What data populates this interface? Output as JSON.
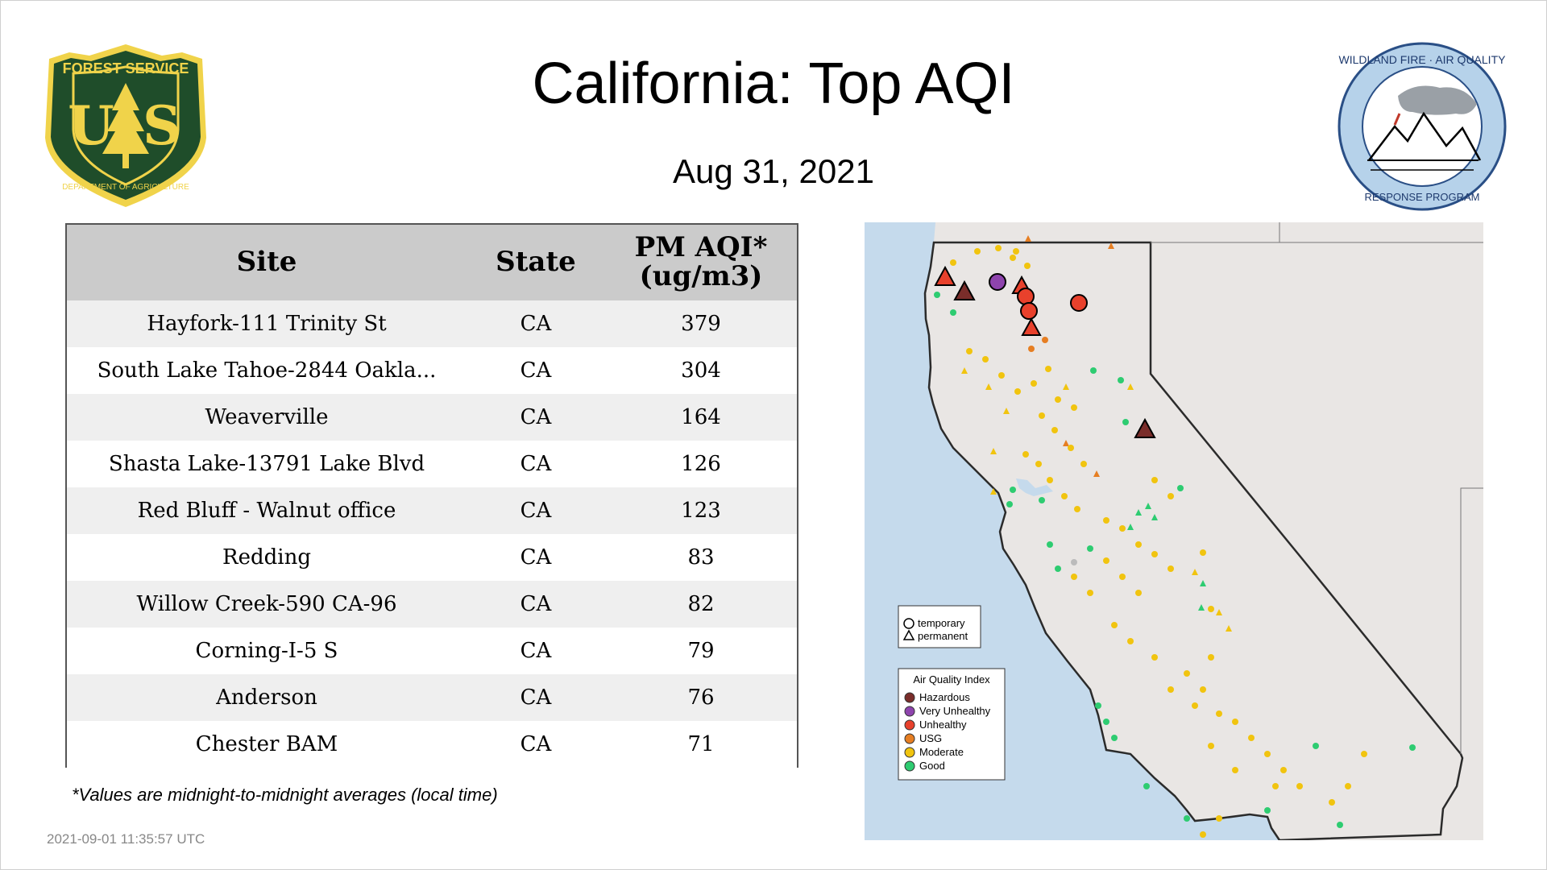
{
  "header": {
    "title": "California: Top AQI",
    "date": "Aug 31, 2021"
  },
  "logos": {
    "left": {
      "name": "forest-service-shield",
      "text_top": "FOREST SERVICE",
      "text_mid": "U S",
      "text_bottom": "DEPARTMENT OF AGRICULTURE",
      "colors": {
        "green": "#1f4d2a",
        "gold": "#f0d34a"
      }
    },
    "right": {
      "name": "wildland-fire-air-quality-badge",
      "text_top": "WILDLAND FIRE · AIR QUALITY",
      "text_bottom": "RESPONSE PROGRAM",
      "colors": {
        "ring": "#b6d2ea",
        "outline": "#2a4f86"
      }
    }
  },
  "table": {
    "headers": {
      "site": "Site",
      "state": "State",
      "aqi_line1": "PM AQI*",
      "aqi_line2": "(ug/m3)"
    },
    "rows": [
      {
        "site": "Hayfork-111 Trinity St",
        "state": "CA",
        "aqi": "379"
      },
      {
        "site": "South Lake Tahoe-2844 Oakla...",
        "state": "CA",
        "aqi": "304"
      },
      {
        "site": "Weaverville",
        "state": "CA",
        "aqi": "164"
      },
      {
        "site": "Shasta Lake-13791 Lake Blvd",
        "state": "CA",
        "aqi": "126"
      },
      {
        "site": "Red Bluff - Walnut office",
        "state": "CA",
        "aqi": "123"
      },
      {
        "site": "Redding",
        "state": "CA",
        "aqi": "83"
      },
      {
        "site": "Willow Creek-590 CA-96",
        "state": "CA",
        "aqi": "82"
      },
      {
        "site": "Corning-I-5 S",
        "state": "CA",
        "aqi": "79"
      },
      {
        "site": "Anderson",
        "state": "CA",
        "aqi": "76"
      },
      {
        "site": "Chester BAM",
        "state": "CA",
        "aqi": "71"
      }
    ]
  },
  "footnote": "*Values are midnight-to-midnight averages (local time)",
  "timestamp": "2021-09-01 11:35:57 UTC",
  "map": {
    "shape_legend": {
      "temporary": "temporary",
      "permanent": "permanent"
    },
    "aqi_legend": {
      "title": "Air Quality Index",
      "items": [
        {
          "label": "Hazardous",
          "color": "#7a2d2a"
        },
        {
          "label": "Very Unhealthy",
          "color": "#8e44ad"
        },
        {
          "label": "Unhealthy",
          "color": "#e8412c"
        },
        {
          "label": "USG",
          "color": "#e67e22"
        },
        {
          "label": "Moderate",
          "color": "#f1c40f"
        },
        {
          "label": "Good",
          "color": "#2ecc71"
        }
      ]
    },
    "colors": {
      "ocean": "#c5daec",
      "land": "#e9e6e4",
      "border": "#2b2b2b"
    }
  }
}
